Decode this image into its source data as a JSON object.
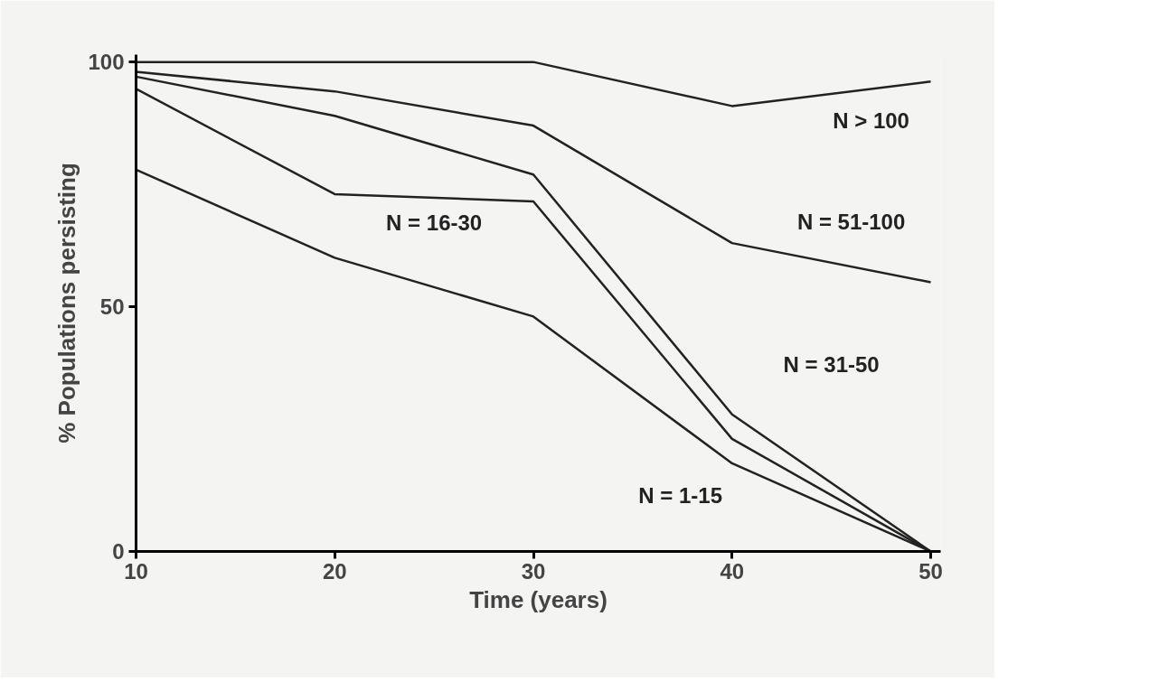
{
  "chart_data": {
    "type": "line",
    "xlabel": "Time (years)",
    "ylabel": "% Populations persisting",
    "x": [
      10,
      20,
      30,
      40,
      50
    ],
    "series": [
      {
        "name": "N > 100",
        "color": "#222222",
        "values": [
          100,
          100,
          100,
          91,
          96
        ]
      },
      {
        "name": "N = 51-100",
        "color": "#222222",
        "values": [
          98,
          94,
          87,
          63,
          55
        ]
      },
      {
        "name": "N = 31-50",
        "color": "#222222",
        "values": [
          97,
          89,
          77,
          28,
          0
        ]
      },
      {
        "name": "N = 16-30",
        "color": "#222222",
        "values": [
          94.5,
          73,
          71.5,
          23,
          0
        ]
      },
      {
        "name": "N = 1-15",
        "color": "#222222",
        "values": [
          78,
          60,
          48,
          18,
          0
        ]
      }
    ],
    "xlim": [
      10,
      50.5
    ],
    "ylim": [
      0,
      101.5
    ],
    "xticks": [
      10,
      20,
      30,
      40,
      50
    ],
    "yticks": [
      0,
      50,
      100
    ],
    "grid": false,
    "marker": "none",
    "line_style": "solid"
  }
}
